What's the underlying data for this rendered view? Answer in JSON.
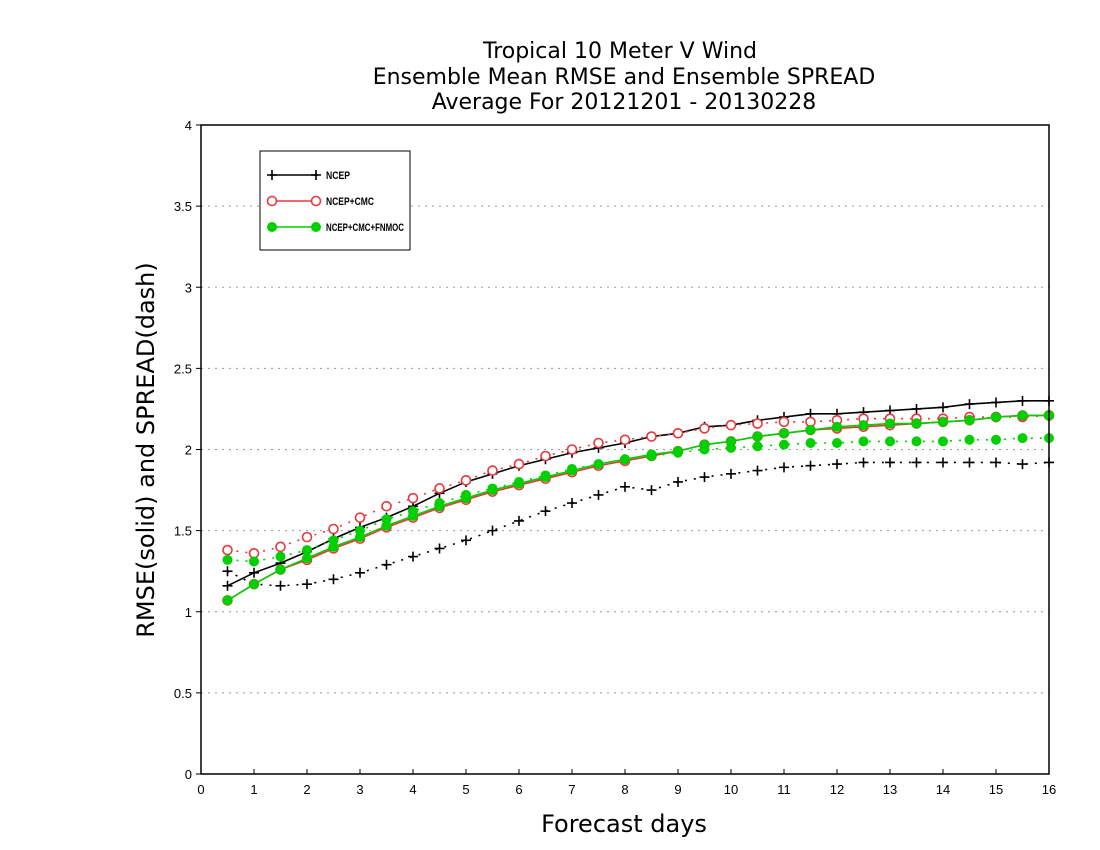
{
  "chart_data": {
    "type": "line",
    "title": [
      "Tropical 10 Meter V Wind",
      "Ensemble Mean RMSE and Ensemble SPREAD",
      "Average For 20121201 - 20130228"
    ],
    "xlabel": "Forecast days",
    "ylabel": "RMSE(solid) and SPREAD(dash)",
    "xlim": [
      0,
      16
    ],
    "ylim": [
      0,
      4
    ],
    "xticks": [
      "0",
      "1",
      "2",
      "3",
      "4",
      "5",
      "6",
      "7",
      "8",
      "9",
      "10",
      "11",
      "12",
      "13",
      "14",
      "15",
      "16"
    ],
    "yticks": [
      "0",
      "0.5",
      "1",
      "1.5",
      "2",
      "2.5",
      "3",
      "3.5",
      "4"
    ],
    "grid": "horizontal dotted",
    "legend_position": "top-left",
    "x": [
      0.5,
      1,
      1.5,
      2,
      2.5,
      3,
      3.5,
      4,
      4.5,
      5,
      5.5,
      6,
      6.5,
      7,
      7.5,
      8,
      8.5,
      9,
      9.5,
      10,
      10.5,
      11,
      11.5,
      12,
      12.5,
      13,
      13.5,
      14,
      14.5,
      15,
      15.5,
      16
    ],
    "series": [
      {
        "name": "NCEP",
        "color": "#000000",
        "marker": "plus",
        "rmse": [
          1.16,
          1.24,
          1.3,
          1.37,
          1.45,
          1.52,
          1.58,
          1.65,
          1.73,
          1.8,
          1.85,
          1.9,
          1.94,
          1.98,
          2.01,
          2.04,
          2.08,
          2.1,
          2.14,
          2.15,
          2.18,
          2.2,
          2.22,
          2.22,
          2.23,
          2.24,
          2.25,
          2.26,
          2.28,
          2.29,
          2.3,
          2.3
        ],
        "spread": [
          1.25,
          1.17,
          1.16,
          1.17,
          1.2,
          1.24,
          1.29,
          1.34,
          1.39,
          1.44,
          1.5,
          1.56,
          1.62,
          1.67,
          1.72,
          1.77,
          1.75,
          1.8,
          1.83,
          1.85,
          1.87,
          1.89,
          1.9,
          1.91,
          1.92,
          1.92,
          1.92,
          1.92,
          1.92,
          1.92,
          1.91,
          1.92
        ]
      },
      {
        "name": "NCEP+CMC",
        "color": "#e8383c",
        "marker": "open-circle",
        "rmse": [
          1.07,
          1.17,
          1.26,
          1.32,
          1.39,
          1.45,
          1.52,
          1.58,
          1.64,
          1.69,
          1.74,
          1.78,
          1.82,
          1.86,
          1.9,
          1.93,
          1.96,
          1.99,
          2.03,
          2.05,
          2.08,
          2.1,
          2.12,
          2.13,
          2.14,
          2.15,
          2.16,
          2.17,
          2.18,
          2.2,
          2.21,
          2.21
        ],
        "spread": [
          1.38,
          1.36,
          1.4,
          1.46,
          1.51,
          1.58,
          1.65,
          1.7,
          1.76,
          1.81,
          1.87,
          1.91,
          1.96,
          2.0,
          2.04,
          2.06,
          2.08,
          2.1,
          2.13,
          2.15,
          2.16,
          2.17,
          2.17,
          2.18,
          2.19,
          2.19,
          2.19,
          2.19,
          2.2,
          2.2,
          2.2,
          2.21
        ]
      },
      {
        "name": "NCEP+CMC+FNMOC",
        "color": "#00d000",
        "marker": "filled-circle",
        "rmse": [
          1.07,
          1.17,
          1.26,
          1.33,
          1.4,
          1.46,
          1.53,
          1.59,
          1.65,
          1.7,
          1.75,
          1.79,
          1.83,
          1.87,
          1.91,
          1.94,
          1.97,
          1.99,
          2.03,
          2.05,
          2.08,
          2.1,
          2.12,
          2.14,
          2.15,
          2.16,
          2.16,
          2.17,
          2.18,
          2.2,
          2.21,
          2.21
        ],
        "spread": [
          1.32,
          1.31,
          1.34,
          1.38,
          1.44,
          1.5,
          1.57,
          1.62,
          1.67,
          1.72,
          1.76,
          1.8,
          1.84,
          1.88,
          1.91,
          1.94,
          1.96,
          1.98,
          2.0,
          2.01,
          2.02,
          2.03,
          2.04,
          2.04,
          2.05,
          2.05,
          2.05,
          2.05,
          2.06,
          2.06,
          2.07,
          2.07
        ]
      }
    ]
  }
}
